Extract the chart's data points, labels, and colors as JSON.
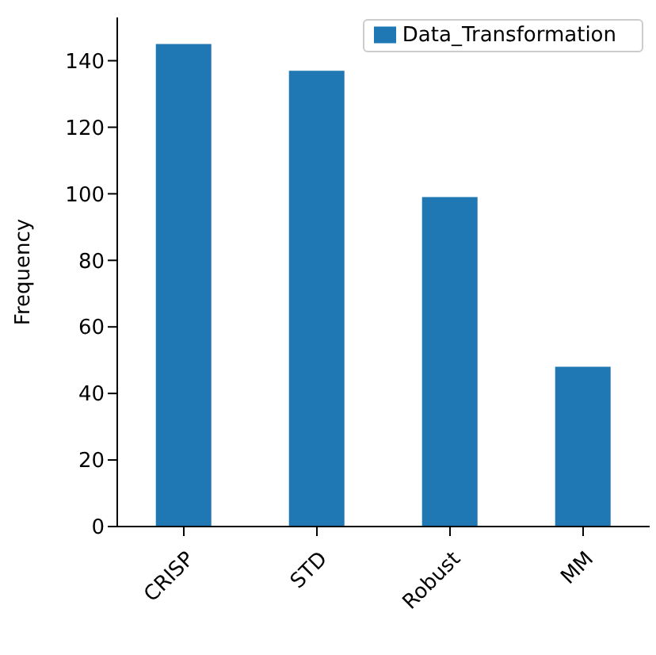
{
  "chart_data": {
    "type": "bar",
    "ylabel": "Frequency",
    "categories": [
      "CRISP",
      "STD",
      "Robust",
      "MM"
    ],
    "series": [
      {
        "name": "Data_Transformation",
        "color": "#1f77b4",
        "values": [
          145,
          137,
          99,
          48
        ]
      }
    ],
    "ylim": [
      0,
      153
    ],
    "yticks": [
      0,
      20,
      40,
      60,
      80,
      100,
      120,
      140
    ],
    "legend": "top right",
    "grid": false
  }
}
